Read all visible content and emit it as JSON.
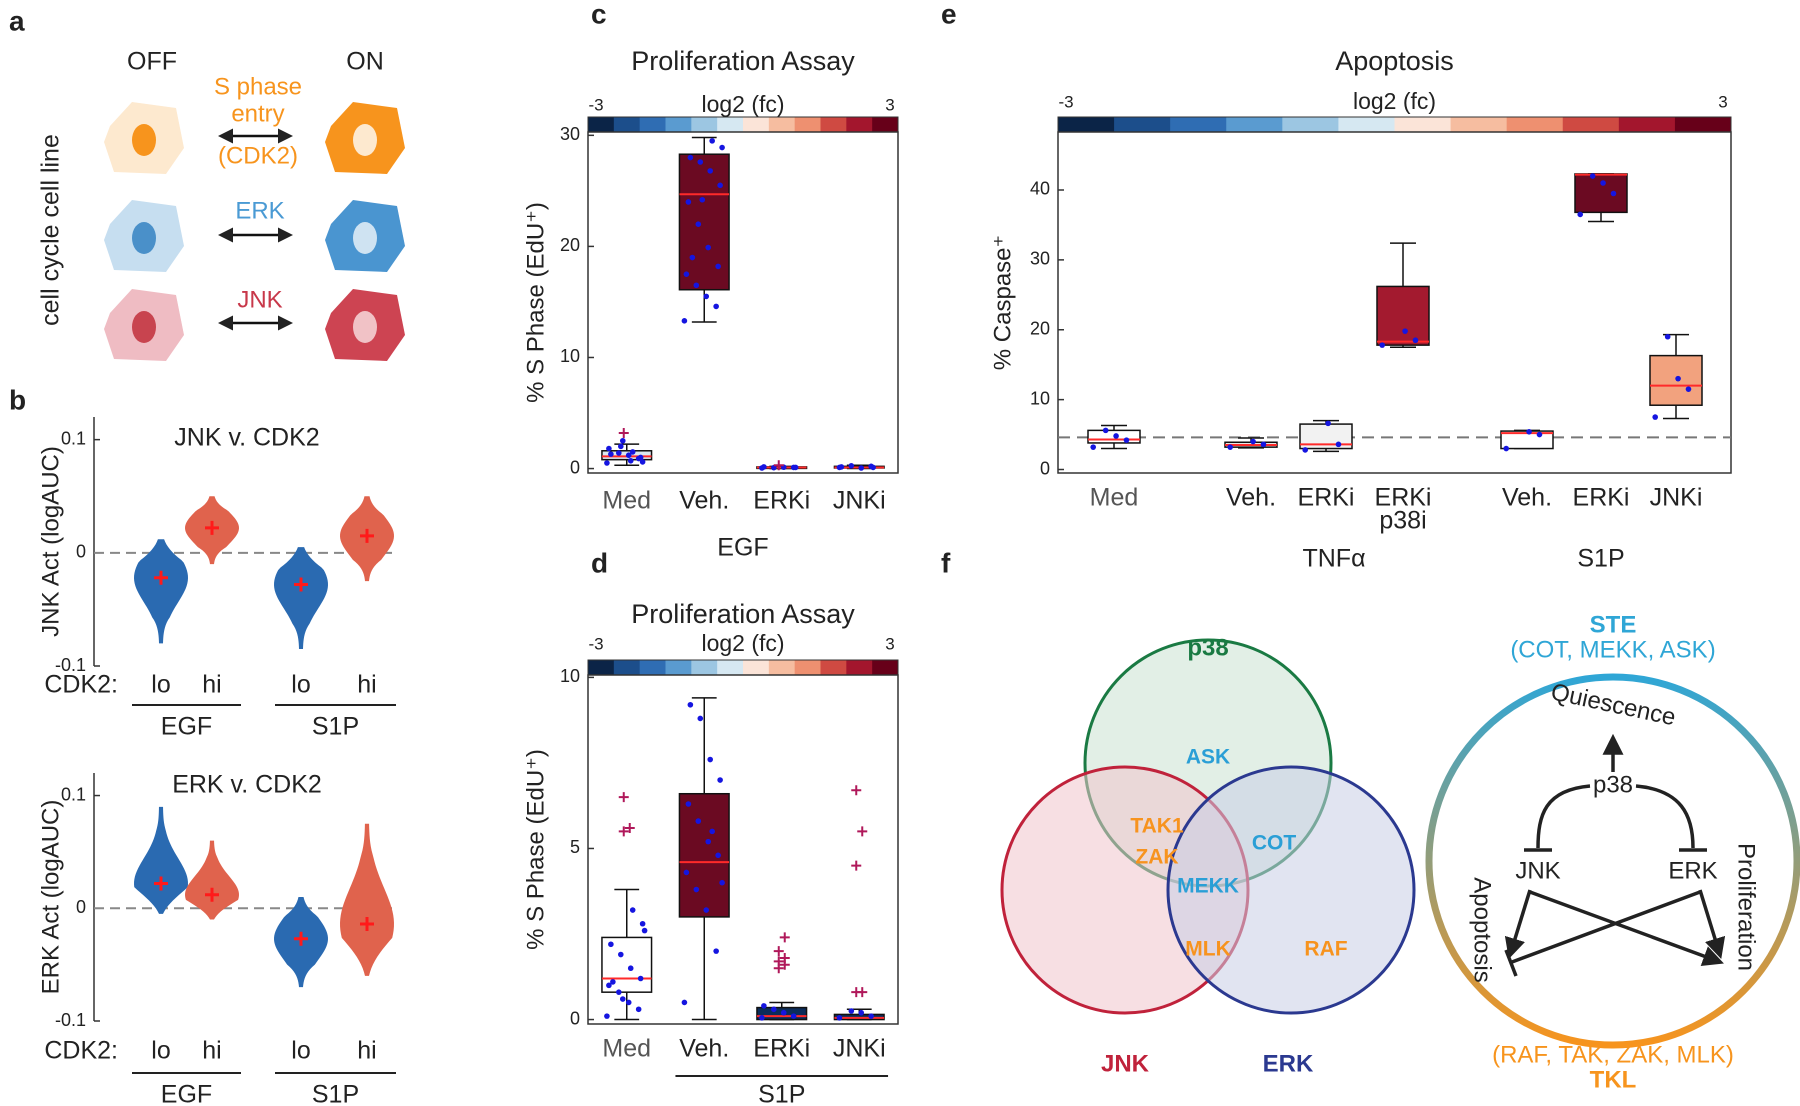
{
  "panel_labels": [
    "a",
    "b",
    "c",
    "d",
    "e",
    "f"
  ],
  "cell_diagram": {
    "off": "OFF",
    "on": "ON",
    "ylabel": "cell cycle cell line",
    "reporters": [
      {
        "lines": [
          "S phase",
          "entry",
          "(CDK2)"
        ]
      },
      {
        "lines": [
          "ERK"
        ]
      },
      {
        "lines": [
          "JNK"
        ]
      }
    ]
  },
  "chart_data": [
    {
      "type": "violin",
      "title": "JNK v. CDK2",
      "ylabel": "JNK Act (logAUC)",
      "category_prefix": "CDK2:",
      "categories": [
        "lo",
        "hi",
        "lo",
        "hi"
      ],
      "groups": [
        "EGF",
        "S1P"
      ],
      "ylim": [
        -0.1,
        0.12
      ],
      "yticks": [
        -0.1,
        0,
        0.1
      ],
      "reference_line": 0,
      "violins": [
        {
          "min": -0.08,
          "max": 0.012,
          "mean": -0.022,
          "color": "#2a6ab1"
        },
        {
          "min": -0.01,
          "max": 0.05,
          "mean": 0.022,
          "color": "#e0634d"
        },
        {
          "min": -0.085,
          "max": 0.005,
          "mean": -0.028,
          "color": "#2a6ab1"
        },
        {
          "min": -0.025,
          "max": 0.05,
          "mean": 0.015,
          "color": "#e0634d"
        }
      ]
    },
    {
      "type": "violin",
      "title": "ERK v. CDK2",
      "ylabel": "ERK Act (logAUC)",
      "category_prefix": "CDK2:",
      "categories": [
        "lo",
        "hi",
        "lo",
        "hi"
      ],
      "groups": [
        "EGF",
        "S1P"
      ],
      "ylim": [
        -0.1,
        0.12
      ],
      "yticks": [
        -0.1,
        0,
        0.1
      ],
      "reference_line": 0,
      "violins": [
        {
          "min": -0.005,
          "max": 0.09,
          "mean": 0.022,
          "color": "#2a6ab1"
        },
        {
          "min": -0.01,
          "max": 0.06,
          "mean": 0.012,
          "color": "#e0634d"
        },
        {
          "min": -0.07,
          "max": 0.01,
          "mean": -0.027,
          "color": "#2a6ab1"
        },
        {
          "min": -0.06,
          "max": 0.075,
          "mean": -0.014,
          "color": "#e0634d"
        }
      ]
    },
    {
      "type": "box",
      "title": "Proliferation Assay",
      "ylabel": "% S Phase (EdU⁺)",
      "colorbar": {
        "label": "log2 (fc)",
        "lim": [
          -3,
          3
        ],
        "colors": [
          "#0b2447",
          "#1c4e8b",
          "#2f6db3",
          "#5a9bd0",
          "#9cc6e2",
          "#d6e8f2",
          "#fbe4d8",
          "#f6bda0",
          "#ee9070",
          "#cf4a42",
          "#a3162d",
          "#670019"
        ]
      },
      "categories": [
        "Med",
        "Veh.",
        "ERKi",
        "JNKi"
      ],
      "group": "EGF",
      "ylim": [
        -0.4,
        30.3
      ],
      "yticks": [
        0,
        10,
        20,
        30
      ],
      "boxes": [
        {
          "whisker_low": 0.3,
          "q1": 0.8,
          "median": 1.1,
          "q3": 1.6,
          "whisker_high": 2.2,
          "color": "#dbe8f1",
          "outliers": [
            3.2
          ],
          "points": [
            0.5,
            0.9,
            1.2,
            1.4,
            1.8,
            1.0,
            0.7,
            2.0,
            1.3,
            0.6,
            1.5,
            2.5
          ]
        },
        {
          "whisker_low": 13.2,
          "q1": 16.1,
          "median": 24.7,
          "q3": 28.3,
          "whisker_high": 29.8,
          "color": "#6b0a22",
          "outliers": [],
          "points": [
            13.3,
            14.6,
            15.5,
            16.5,
            17.5,
            18.2,
            19.9,
            22.0,
            24.0,
            25.5,
            26.8,
            27.6,
            28.0,
            28.9,
            29.5,
            24.2,
            19.0
          ]
        },
        {
          "whisker_low": 0,
          "q1": 0.05,
          "median": 0.1,
          "q3": 0.15,
          "whisker_high": 0.2,
          "color": "#0a2a5a",
          "outliers": [
            0.3
          ],
          "points": [
            0.05,
            0.1,
            0.12,
            0.08,
            0.15,
            0.1
          ]
        },
        {
          "whisker_low": 0,
          "q1": 0.05,
          "median": 0.1,
          "q3": 0.2,
          "whisker_high": 0.3,
          "color": "#0a2a5a",
          "outliers": [],
          "points": [
            0.1,
            0.2,
            0.05,
            0.25,
            0.15,
            0.1
          ]
        }
      ]
    },
    {
      "type": "box",
      "title": "Proliferation Assay",
      "ylabel": "% S Phase (EdU⁺)",
      "colorbar": {
        "label": "log2 (fc)",
        "lim": [
          -3,
          3
        ],
        "colors": [
          "#0b2447",
          "#1c4e8b",
          "#2f6db3",
          "#5a9bd0",
          "#9cc6e2",
          "#d6e8f2",
          "#fbe4d8",
          "#f6bda0",
          "#ee9070",
          "#cf4a42",
          "#a3162d",
          "#670019"
        ]
      },
      "categories": [
        "Med",
        "Veh.",
        "ERKi",
        "JNKi"
      ],
      "group": "S1P",
      "ylim": [
        -0.13,
        10.07
      ],
      "yticks": [
        0,
        5,
        10
      ],
      "boxes": [
        {
          "whisker_low": 0,
          "q1": 0.8,
          "median": 1.2,
          "q3": 2.4,
          "whisker_high": 3.8,
          "color": "#ffffff",
          "outliers": [
            5.5,
            5.6,
            6.5
          ],
          "points": [
            0.1,
            0.3,
            0.5,
            0.8,
            1.0,
            1.2,
            1.5,
            1.9,
            2.2,
            2.8,
            3.2,
            0.6,
            1.1,
            2.6
          ]
        },
        {
          "whisker_low": 0,
          "q1": 3.0,
          "median": 4.6,
          "q3": 6.6,
          "whisker_high": 9.4,
          "color": "#6b0a22",
          "outliers": [],
          "points": [
            0.5,
            2,
            3.2,
            3.8,
            4.3,
            4.8,
            5.2,
            5.8,
            6.3,
            7.0,
            7.6,
            8.8,
            9.2,
            4.0,
            5.5
          ]
        },
        {
          "whisker_low": 0,
          "q1": 0,
          "median": 0.1,
          "q3": 0.35,
          "whisker_high": 0.5,
          "color": "#0b2c5a",
          "outliers": [
            1.5,
            1.6,
            1.7,
            1.8,
            2.0,
            2.4
          ],
          "points": [
            0.05,
            0.1,
            0.2,
            0.3,
            0.4
          ]
        },
        {
          "whisker_low": 0,
          "q1": 0,
          "median": 0.05,
          "q3": 0.15,
          "whisker_high": 0.3,
          "color": "#0b2c5a",
          "outliers": [
            0.8,
            0.8,
            4.5,
            5.5,
            6.7
          ],
          "points": [
            0.05,
            0.1,
            0.2,
            0.25
          ]
        }
      ]
    },
    {
      "type": "box",
      "title": "Apoptosis",
      "ylabel": "% Caspase⁺",
      "colorbar": {
        "label": "log2 (fc)",
        "lim": [
          -3,
          3
        ],
        "colors": [
          "#0b2447",
          "#1c4e8b",
          "#2f6db3",
          "#5a9bd0",
          "#9cc6e2",
          "#d6e8f2",
          "#fbe4d8",
          "#f6bda0",
          "#ee9070",
          "#cf4a42",
          "#a3162d",
          "#670019"
        ]
      },
      "categories": [
        "Med",
        "Veh.",
        "ERKi",
        [
          "ERKi",
          "p38i"
        ],
        "Veh.",
        "ERKi",
        "JNKi"
      ],
      "groups": [
        "TNFα",
        "S1P"
      ],
      "ylim": [
        -0.5,
        48.3
      ],
      "yticks": [
        0,
        10,
        20,
        30,
        40
      ],
      "reference_line": 4.6,
      "boxes": [
        {
          "whisker_low": 3.0,
          "q1": 3.8,
          "median": 4.3,
          "q3": 5.6,
          "whisker_high": 6.3,
          "color": "#ffffff",
          "outliers": [],
          "points": [
            3.2,
            4.2,
            4.8,
            5.6
          ]
        },
        {
          "whisker_low": 3.1,
          "q1": 3.2,
          "median": 3.5,
          "q3": 3.9,
          "whisker_high": 4.5,
          "color": "#e8e8e8",
          "outliers": [],
          "points": [
            3.2,
            3.6,
            4.0
          ]
        },
        {
          "whisker_low": 2.6,
          "q1": 3.0,
          "median": 3.6,
          "q3": 6.5,
          "whisker_high": 7.0,
          "color": "#f2f2f2",
          "outliers": [],
          "points": [
            2.8,
            3.6,
            6.6
          ]
        },
        {
          "whisker_low": 17.5,
          "q1": 17.8,
          "median": 18.3,
          "q3": 26.2,
          "whisker_high": 32.4,
          "color": "#a31a2f",
          "outliers": [],
          "points": [
            17.8,
            18.5,
            19.8
          ]
        },
        {
          "whisker_low": 3.0,
          "q1": 3.0,
          "median": 5.2,
          "q3": 5.5,
          "whisker_high": 5.6,
          "color": "#ffffff",
          "outliers": [],
          "points": [
            3.0,
            5.0,
            5.4
          ]
        },
        {
          "whisker_low": 35.5,
          "q1": 36.8,
          "median": 42.2,
          "q3": 42.3,
          "whisker_high": 42.3,
          "color": "#6b0a22",
          "outliers": [],
          "points": [
            36.5,
            39.5,
            41.0,
            42.0
          ]
        },
        {
          "whisker_low": 7.3,
          "q1": 9.2,
          "median": 12.0,
          "q3": 16.3,
          "whisker_high": 19.3,
          "color": "#f2a27e",
          "outliers": [],
          "points": [
            7.5,
            11.5,
            13.0,
            19.0
          ]
        }
      ]
    }
  ],
  "venn": {
    "sets": [
      "p38",
      "JNK",
      "ERK"
    ],
    "members": [
      "ASK",
      "TAK1",
      "ZAK",
      "COT",
      "MEKK",
      "MLK",
      "RAF"
    ]
  },
  "pathway_diagram": {
    "top_family": "STE",
    "top_members": "(COT, MEKK, ASK)",
    "bottom_family": "TKL",
    "bottom_members": "(RAF, TAK, ZAK, MLK)",
    "nodes": [
      "p38",
      "JNK",
      "ERK"
    ],
    "outcomes": [
      "Quiescence",
      "Apoptosis",
      "Proliferation"
    ]
  }
}
